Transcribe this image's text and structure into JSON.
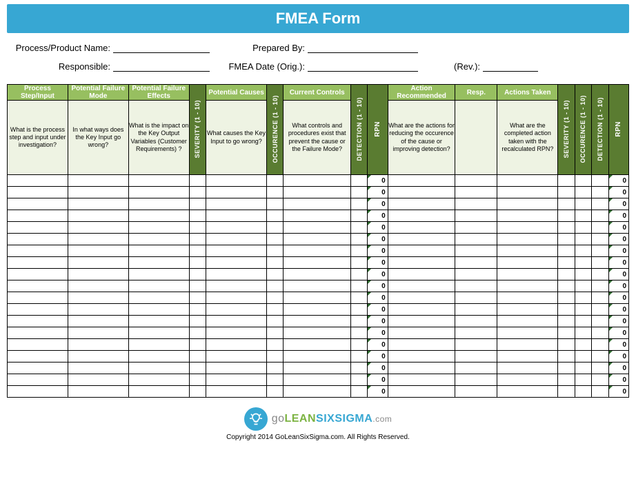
{
  "title": "FMEA Form",
  "meta": {
    "process_name_label": "Process/Product Name:",
    "responsible_label": "Responsible:",
    "prepared_by_label": "Prepared By:",
    "fmea_date_label": "FMEA Date (Orig.):",
    "rev_label": "(Rev.):",
    "process_name_value": "",
    "responsible_value": "",
    "prepared_by_value": "",
    "fmea_date_value": "",
    "rev_value": ""
  },
  "columns": [
    {
      "key": "process_step",
      "header": "Process Step/Input",
      "style": "light",
      "desc": "What is the process step and input under investigation?"
    },
    {
      "key": "failure_mode",
      "header": "Potential Failure Mode",
      "style": "light",
      "desc": "In what ways does the Key Input go wrong?"
    },
    {
      "key": "failure_effects",
      "header": "Potential Failure Effects",
      "style": "light",
      "desc": "What is the impact on the Key Output Variables (Customer Requirements) ?"
    },
    {
      "key": "severity",
      "header": "SEVERITY  (1 - 10)",
      "style": "dark",
      "vertical": true
    },
    {
      "key": "causes",
      "header": "Potential Causes",
      "style": "light",
      "desc": "What causes the Key Input to go wrong?"
    },
    {
      "key": "occurence",
      "header": "OCCURENCE  (1 - 10)",
      "style": "dark",
      "vertical": true
    },
    {
      "key": "controls",
      "header": "Current Controls",
      "style": "light",
      "desc": "What controls and procedures exist that prevent the cause or the Failure Mode?"
    },
    {
      "key": "detection",
      "header": "DETECTION  (1 - 10)",
      "style": "dark",
      "vertical": true
    },
    {
      "key": "rpn",
      "header": "RPN",
      "style": "dark",
      "vertical": true,
      "rpn": true
    },
    {
      "key": "action_rec",
      "header": "Action Recommended",
      "style": "light",
      "desc": "What are the actions for reducing the occurence of the cause or improving detection?"
    },
    {
      "key": "resp",
      "header": "Resp.",
      "style": "light",
      "desc": ""
    },
    {
      "key": "actions_taken",
      "header": "Actions Taken",
      "style": "light",
      "desc": "What are the completed action taken with the recalculated RPN?"
    },
    {
      "key": "severity2",
      "header": "SEVERITY  (1 - 10)",
      "style": "dark",
      "vertical": true
    },
    {
      "key": "occurence2",
      "header": "OCCURENCE  (1 - 10)",
      "style": "dark",
      "vertical": true
    },
    {
      "key": "detection2",
      "header": "DETECTION  (1 - 10)",
      "style": "dark",
      "vertical": true
    },
    {
      "key": "rpn2",
      "header": "RPN",
      "style": "dark",
      "vertical": true,
      "rpn": true
    }
  ],
  "data_row_count": 19,
  "rpn_default": "0",
  "colors": {
    "title_bg": "#37a7d3",
    "header_light": "#97bf60",
    "header_dark": "#5a7c31",
    "desc_bg": "#eef3e3",
    "border": "#000000",
    "corner_mark": "#2e6b2e"
  },
  "footer": {
    "logo_go": "go",
    "logo_lean": "LEAN",
    "logo_six": "SIXSIGMA",
    "logo_com": ".com",
    "copyright": "Copyright 2014 GoLeanSixSigma.com. All Rights Reserved."
  }
}
